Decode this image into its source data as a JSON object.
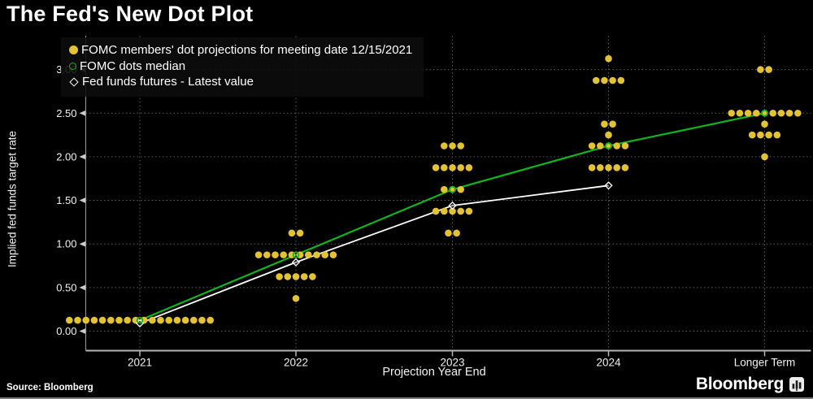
{
  "header": {
    "title": "The Fed's New Dot Plot"
  },
  "legend": {
    "items": [
      {
        "marker": "filled-dot-icon",
        "color": "#e3c233",
        "label": "FOMC members' dot projections for meeting date 12/15/2021"
      },
      {
        "marker": "open-circle-icon",
        "color": "#0fb41e",
        "label": "FOMC dots median"
      },
      {
        "marker": "open-diamond-icon",
        "color": "#ffffff",
        "label": "Fed funds futures - Latest value"
      }
    ]
  },
  "axes": {
    "y_title": "Implied fed funds target rate",
    "x_title": "Projection Year End"
  },
  "footer": {
    "source": "Source: Bloomberg",
    "brand": "Bloomberg"
  },
  "chart_data": {
    "type": "scatter",
    "title": "The Fed's New Dot Plot",
    "xlabel": "Projection Year End",
    "ylabel": "Implied fed funds target rate",
    "categories": [
      "2021",
      "2022",
      "2023",
      "2024",
      "Longer Term"
    ],
    "ylim": [
      0,
      3.25
    ],
    "grid": true,
    "legend_position": "top-left",
    "y_ticks": [
      {
        "value": 0.0,
        "label": "0.00"
      },
      {
        "value": 0.5,
        "label": "0.50"
      },
      {
        "value": 1.0,
        "label": "1.00"
      },
      {
        "value": 1.5,
        "label": "1.50"
      },
      {
        "value": 2.0,
        "label": "2.00"
      },
      {
        "value": 2.5,
        "label": "2.50"
      },
      {
        "value": 3.0,
        "label": "3.00"
      }
    ],
    "dots": [
      {
        "category": "2021",
        "value": 0.125,
        "count": 18
      },
      {
        "category": "2022",
        "value": 1.125,
        "count": 2
      },
      {
        "category": "2022",
        "value": 0.875,
        "count": 10
      },
      {
        "category": "2022",
        "value": 0.625,
        "count": 5
      },
      {
        "category": "2022",
        "value": 0.375,
        "count": 1
      },
      {
        "category": "2023",
        "value": 2.125,
        "count": 3
      },
      {
        "category": "2023",
        "value": 1.875,
        "count": 5
      },
      {
        "category": "2023",
        "value": 1.625,
        "count": 3
      },
      {
        "category": "2023",
        "value": 1.375,
        "count": 5
      },
      {
        "category": "2023",
        "value": 1.125,
        "count": 2
      },
      {
        "category": "2024",
        "value": 3.125,
        "count": 1
      },
      {
        "category": "2024",
        "value": 2.875,
        "count": 4
      },
      {
        "category": "2024",
        "value": 2.375,
        "count": 2
      },
      {
        "category": "2024",
        "value": 2.25,
        "count": 1
      },
      {
        "category": "2024",
        "value": 2.125,
        "count": 5
      },
      {
        "category": "2024",
        "value": 1.875,
        "count": 5
      },
      {
        "category": "Longer Term",
        "value": 3.0,
        "count": 2
      },
      {
        "category": "Longer Term",
        "value": 2.5,
        "count": 9
      },
      {
        "category": "Longer Term",
        "value": 2.375,
        "count": 1
      },
      {
        "category": "Longer Term",
        "value": 2.25,
        "count": 4
      },
      {
        "category": "Longer Term",
        "value": 2.0,
        "count": 1
      }
    ],
    "series": [
      {
        "name": "FOMC dots median",
        "marker": "open-circle",
        "color": "#0fb41e",
        "points": [
          {
            "category": "2021",
            "value": 0.125
          },
          {
            "category": "2022",
            "value": 0.875
          },
          {
            "category": "2023",
            "value": 1.625
          },
          {
            "category": "2024",
            "value": 2.125
          },
          {
            "category": "Longer Term",
            "value": 2.5
          }
        ]
      },
      {
        "name": "Fed funds futures - Latest value",
        "marker": "open-diamond",
        "color": "#ffffff",
        "points": [
          {
            "category": "2021",
            "value": 0.09
          },
          {
            "category": "2022",
            "value": 0.79
          },
          {
            "category": "2023",
            "value": 1.44
          },
          {
            "category": "2024",
            "value": 1.67
          }
        ]
      }
    ],
    "colors": {
      "dots": "#e3c233",
      "median_line": "#0fb41e",
      "futures_line": "#ffffff",
      "grid": "#5c5c5c",
      "axis": "#b5b5b5",
      "text": "#f2f2f2",
      "background": "#000000"
    }
  }
}
